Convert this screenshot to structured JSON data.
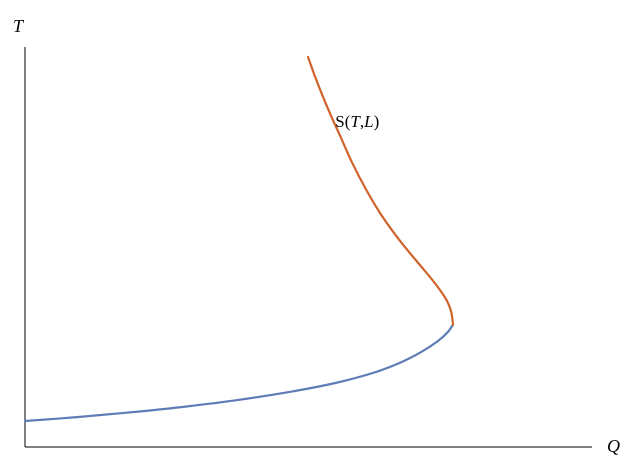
{
  "chart_data": {
    "type": "line",
    "title": "",
    "xlabel": "Q",
    "ylabel": "T",
    "xlim": [
      0,
      1
    ],
    "ylim": [
      0,
      1
    ],
    "grid": false,
    "ticks": false,
    "annotation": {
      "parts": [
        "S(",
        "T",
        ",",
        "L",
        ")"
      ],
      "x": 0.58,
      "y": 0.8,
      "series": "upper"
    },
    "series": [
      {
        "id": "lower",
        "color": "#5e7cb5",
        "x": [
          0.0,
          0.1,
          0.2,
          0.3,
          0.4,
          0.5,
          0.58,
          0.65,
          0.7,
          0.74,
          0.77,
          0.79,
          0.8
        ],
        "y": [
          0.065,
          0.075,
          0.087,
          0.101,
          0.118,
          0.139,
          0.16,
          0.185,
          0.21,
          0.237,
          0.263,
          0.287,
          0.306
        ]
      },
      {
        "id": "upper",
        "color": "#d0632a",
        "x": [
          0.8,
          0.797,
          0.79,
          0.778,
          0.76,
          0.735,
          0.7,
          0.666,
          0.637,
          0.611,
          0.589,
          0.572,
          0.555,
          0.541,
          0.529
        ],
        "y": [
          0.306,
          0.336,
          0.362,
          0.388,
          0.42,
          0.46,
          0.517,
          0.58,
          0.645,
          0.712,
          0.778,
          0.828,
          0.882,
          0.93,
          0.975
        ]
      }
    ]
  }
}
